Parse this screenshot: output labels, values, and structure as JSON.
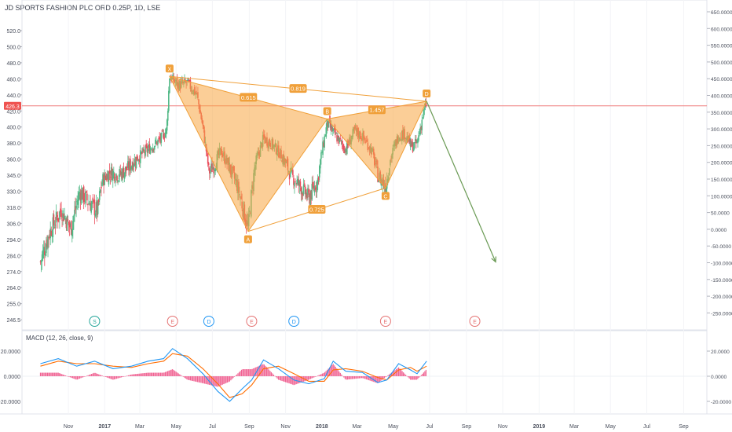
{
  "chart_title": "JD SPORTS FASHION PLC ORD 0.25P, 1D, LSE",
  "price_label": "426.3",
  "macd_title": "MACD (12, 26, close, 9)",
  "colors": {
    "up": "#53b987",
    "down": "#eb4d5c",
    "pattern_fill": "#f7a541",
    "pattern_line": "#f0a03a",
    "projection": "#6a9a54",
    "macd": "#2196f3",
    "signal": "#ff6d00",
    "hist": "#f06292",
    "price_line": "#ef7c7c"
  },
  "chart_data": [
    {
      "type": "candlestick",
      "x_ticks": [
        "Nov",
        "2017",
        "Mar",
        "May",
        "Jul",
        "Sep",
        "Nov",
        "2018",
        "Mar",
        "May",
        "Jul",
        "Sep",
        "Nov",
        "2019",
        "Mar",
        "May",
        "Jul",
        "Sep"
      ],
      "y_left_ticks": [
        "520.0",
        "500.0",
        "480.0",
        "460.0",
        "440.0",
        "420.0",
        "400.0",
        "380.0",
        "360.0",
        "345.0",
        "330.0",
        "318.0",
        "306.0",
        "294.0",
        "284.0",
        "274.0",
        "264.0",
        "255.0",
        "246.5"
      ],
      "y_right_ticks": [
        "650.0000",
        "600.0000",
        "550.0000",
        "500.0000",
        "450.0000",
        "400.0000",
        "350.0000",
        "300.0000",
        "250.0000",
        "200.0000",
        "150.0000",
        "100.0000",
        "50.0000",
        "0.0000",
        "-50.0000",
        "-100.0000",
        "-150.0000",
        "-200.0000",
        "-250.0000"
      ],
      "current_price": 426.3,
      "harmonic_pattern": {
        "points": [
          {
            "label": "X",
            "date": "2017-04-20",
            "price": 463
          },
          {
            "label": "A",
            "date": "2017-08-30",
            "price": 300
          },
          {
            "label": "B",
            "date": "2018-01-10",
            "price": 410
          },
          {
            "label": "C",
            "date": "2018-04-18",
            "price": 333
          },
          {
            "label": "D",
            "date": "2018-06-26",
            "price": 432
          }
        ],
        "ratios": [
          "0.615",
          "0.725",
          "1.457",
          "0.819"
        ],
        "projection_target": {
          "date": "2018-10-20",
          "price": 280
        }
      },
      "events": [
        {
          "label": "S",
          "date": "2016-12-15",
          "kind": "split"
        },
        {
          "label": "E",
          "date": "2017-04-25",
          "kind": "earnings"
        },
        {
          "label": "D",
          "date": "2017-06-25",
          "kind": "dividend"
        },
        {
          "label": "E",
          "date": "2017-09-05",
          "kind": "earnings"
        },
        {
          "label": "D",
          "date": "2017-11-15",
          "kind": "dividend"
        },
        {
          "label": "E",
          "date": "2018-04-18",
          "kind": "earnings"
        },
        {
          "label": "E",
          "date": "2018-09-15",
          "kind": "earnings"
        }
      ],
      "price_path": [
        [
          "2016-09-15",
          280
        ],
        [
          "2016-10-01",
          300
        ],
        [
          "2016-10-20",
          316
        ],
        [
          "2016-11-05",
          302
        ],
        [
          "2016-11-20",
          330
        ],
        [
          "2016-12-05",
          322
        ],
        [
          "2016-12-20",
          315
        ],
        [
          "2016-12-28",
          340
        ],
        [
          "2017-01-10",
          348
        ],
        [
          "2017-01-25",
          345
        ],
        [
          "2017-02-10",
          352
        ],
        [
          "2017-02-25",
          362
        ],
        [
          "2017-03-15",
          372
        ],
        [
          "2017-04-05",
          385
        ],
        [
          "2017-04-15",
          396
        ],
        [
          "2017-04-20",
          463
        ],
        [
          "2017-05-05",
          452
        ],
        [
          "2017-05-20",
          455
        ],
        [
          "2017-06-05",
          440
        ],
        [
          "2017-06-15",
          400
        ],
        [
          "2017-06-25",
          348
        ],
        [
          "2017-07-05",
          355
        ],
        [
          "2017-07-15",
          370
        ],
        [
          "2017-07-30",
          352
        ],
        [
          "2017-08-10",
          338
        ],
        [
          "2017-08-30",
          302
        ],
        [
          "2017-09-10",
          352
        ],
        [
          "2017-09-25",
          386
        ],
        [
          "2017-10-10",
          378
        ],
        [
          "2017-10-25",
          365
        ],
        [
          "2017-11-10",
          345
        ],
        [
          "2017-11-25",
          335
        ],
        [
          "2017-12-10",
          325
        ],
        [
          "2017-12-25",
          340
        ],
        [
          "2018-01-10",
          405
        ],
        [
          "2018-01-25",
          388
        ],
        [
          "2018-02-10",
          372
        ],
        [
          "2018-02-25",
          395
        ],
        [
          "2018-03-10",
          388
        ],
        [
          "2018-03-25",
          372
        ],
        [
          "2018-04-05",
          345
        ],
        [
          "2018-04-18",
          335
        ],
        [
          "2018-04-28",
          365
        ],
        [
          "2018-05-10",
          390
        ],
        [
          "2018-05-20",
          392
        ],
        [
          "2018-06-01",
          375
        ],
        [
          "2018-06-10",
          380
        ],
        [
          "2018-06-20",
          415
        ],
        [
          "2018-06-26",
          430
        ]
      ]
    },
    {
      "type": "macd",
      "y_right_ticks": [
        "20.0000",
        "0.0000",
        "-20.0000"
      ],
      "macd": [
        [
          "2016-09-15",
          10
        ],
        [
          "2016-10-15",
          14
        ],
        [
          "2016-11-15",
          8
        ],
        [
          "2016-12-15",
          12
        ],
        [
          "2017-01-15",
          6
        ],
        [
          "2017-02-15",
          8
        ],
        [
          "2017-03-15",
          12
        ],
        [
          "2017-04-10",
          14
        ],
        [
          "2017-04-25",
          22
        ],
        [
          "2017-05-20",
          14
        ],
        [
          "2017-06-15",
          2
        ],
        [
          "2017-07-10",
          -12
        ],
        [
          "2017-07-30",
          -20
        ],
        [
          "2017-08-20",
          -10
        ],
        [
          "2017-09-05",
          -3
        ],
        [
          "2017-09-25",
          13
        ],
        [
          "2017-10-20",
          6
        ],
        [
          "2017-11-15",
          -3
        ],
        [
          "2017-12-10",
          -6
        ],
        [
          "2018-01-05",
          -2
        ],
        [
          "2018-01-20",
          12
        ],
        [
          "2018-02-10",
          4
        ],
        [
          "2018-03-10",
          3
        ],
        [
          "2018-04-05",
          -5
        ],
        [
          "2018-04-20",
          -3
        ],
        [
          "2018-05-10",
          10
        ],
        [
          "2018-05-30",
          5
        ],
        [
          "2018-06-10",
          2
        ],
        [
          "2018-06-26",
          12
        ]
      ],
      "signal": [
        [
          "2016-09-15",
          8
        ],
        [
          "2016-10-15",
          12
        ],
        [
          "2016-11-15",
          10
        ],
        [
          "2016-12-15",
          10
        ],
        [
          "2017-01-15",
          8
        ],
        [
          "2017-02-15",
          7
        ],
        [
          "2017-03-15",
          10
        ],
        [
          "2017-04-10",
          12
        ],
        [
          "2017-04-25",
          18
        ],
        [
          "2017-05-20",
          16
        ],
        [
          "2017-06-15",
          6
        ],
        [
          "2017-07-10",
          -6
        ],
        [
          "2017-07-30",
          -17
        ],
        [
          "2017-08-20",
          -14
        ],
        [
          "2017-09-05",
          -7
        ],
        [
          "2017-09-25",
          6
        ],
        [
          "2017-10-20",
          8
        ],
        [
          "2017-11-15",
          2
        ],
        [
          "2017-12-10",
          -4
        ],
        [
          "2018-01-05",
          -4
        ],
        [
          "2018-01-20",
          5
        ],
        [
          "2018-02-10",
          6
        ],
        [
          "2018-03-10",
          4
        ],
        [
          "2018-04-05",
          -1
        ],
        [
          "2018-04-20",
          -3
        ],
        [
          "2018-05-10",
          5
        ],
        [
          "2018-05-30",
          7
        ],
        [
          "2018-06-10",
          4
        ],
        [
          "2018-06-26",
          8
        ]
      ]
    }
  ]
}
